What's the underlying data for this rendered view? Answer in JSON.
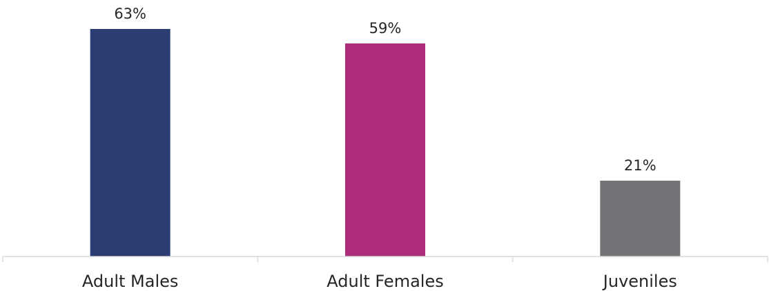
{
  "chart_data": {
    "type": "bar",
    "categories": [
      "Adult Males",
      "Adult Females",
      "Juveniles"
    ],
    "values": [
      63,
      59,
      21
    ],
    "data_labels": [
      "63%",
      "59%",
      "21%"
    ],
    "colors": [
      "#2b3d73",
      "#ad2d7b",
      "#747378"
    ],
    "title": "",
    "xlabel": "",
    "ylabel": "",
    "ylim": [
      0,
      63
    ],
    "grid": false,
    "legend": "none",
    "axis_color": "#d9d9d9"
  }
}
